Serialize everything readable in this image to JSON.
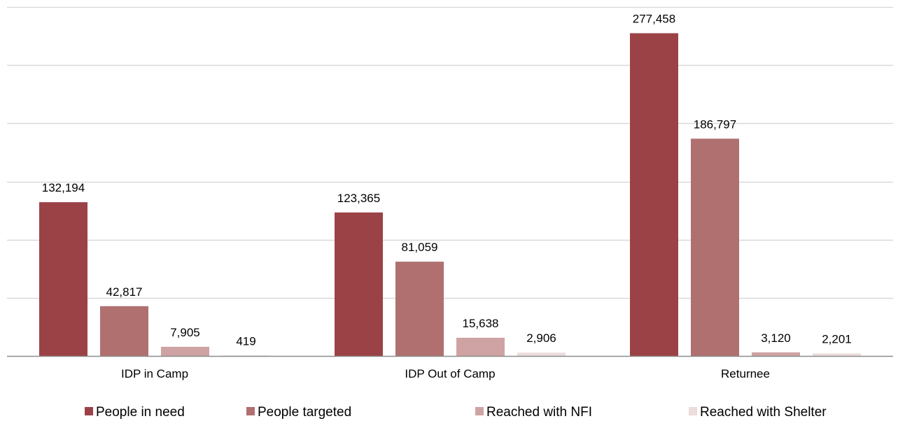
{
  "chart_data": {
    "type": "bar",
    "categories": [
      "IDP in Camp",
      "IDP Out of Camp",
      "Returnee"
    ],
    "series": [
      {
        "name": "People in need",
        "color": "#9b4247",
        "values": [
          132194,
          123365,
          277458
        ],
        "labels": [
          "132,194",
          "123,365",
          "277,458"
        ]
      },
      {
        "name": "People targeted",
        "color": "#b07070",
        "values": [
          42817,
          81059,
          186797
        ],
        "labels": [
          "42,817",
          "81,059",
          "186,797"
        ]
      },
      {
        "name": "Reached with NFI",
        "color": "#cfa3a3",
        "values": [
          7905,
          15638,
          3120
        ],
        "labels": [
          "7,905",
          "15,638",
          "3,120"
        ]
      },
      {
        "name": "Reached with Shelter",
        "color": "#ecdcdc",
        "values": [
          419,
          2906,
          2201
        ],
        "labels": [
          "419",
          "2,906",
          "2,201"
        ]
      }
    ],
    "ylim": [
      0,
      300000
    ],
    "grid": true,
    "legend_position": "bottom",
    "gridline_color": "#d9d9d9",
    "axis_color": "#8c8c8c"
  }
}
